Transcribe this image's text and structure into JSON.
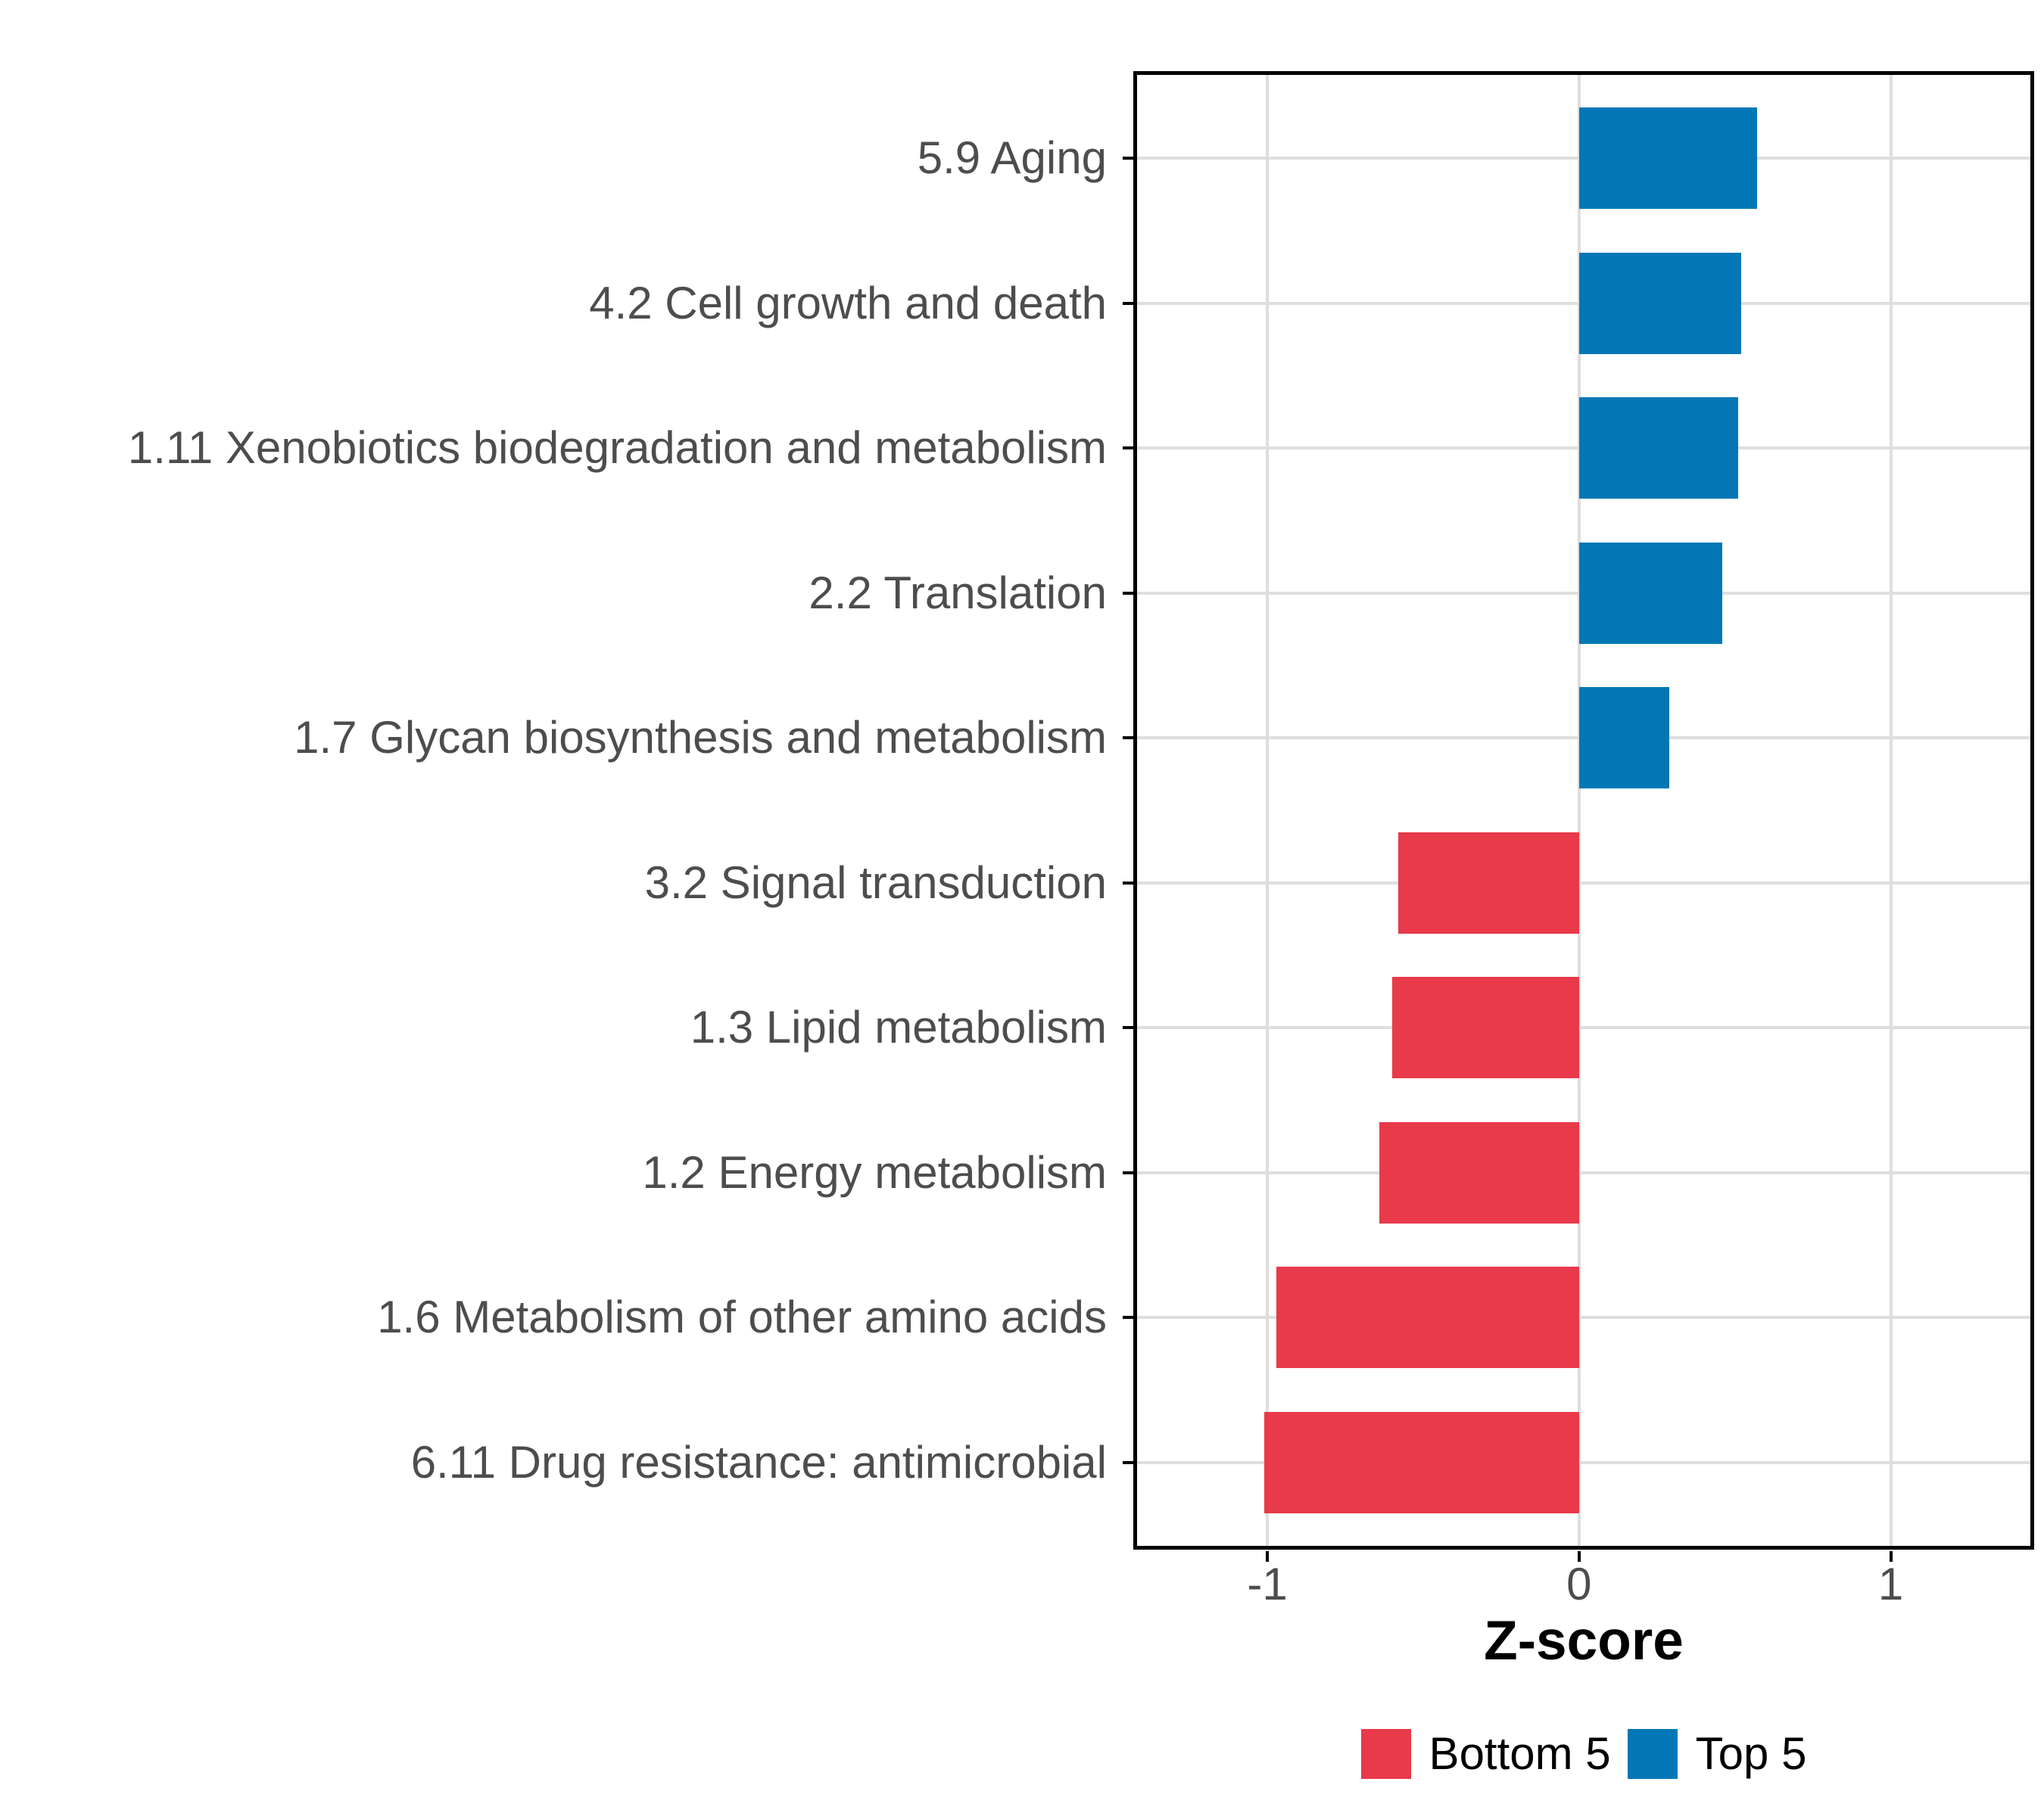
{
  "chart_data": {
    "type": "bar",
    "orientation": "horizontal",
    "title": "",
    "xlabel": "Z-score",
    "ylabel": "",
    "categories": [
      "5.9 Aging",
      "4.2 Cell growth and death",
      "1.11 Xenobiotics biodegradation and metabolism",
      "2.2 Translation",
      "1.7 Glycan biosynthesis and metabolism",
      "3.2 Signal transduction",
      "1.3 Lipid metabolism",
      "1.2 Energy metabolism",
      "1.6 Metabolism of other amino acids",
      "6.11 Drug resistance: antimicrobial"
    ],
    "values": [
      0.57,
      0.52,
      0.51,
      0.46,
      0.29,
      -0.58,
      -0.6,
      -0.64,
      -0.97,
      -1.01
    ],
    "groups": [
      "Top 5",
      "Top 5",
      "Top 5",
      "Top 5",
      "Top 5",
      "Bottom 5",
      "Bottom 5",
      "Bottom 5",
      "Bottom 5",
      "Bottom 5"
    ],
    "xlim": [
      -1.43,
      1.46
    ],
    "x_breaks": [
      {
        "label": "-1",
        "value": -1
      },
      {
        "label": "0",
        "value": 0
      },
      {
        "label": "1",
        "value": 1
      }
    ],
    "grid": true,
    "legend": {
      "position": "bottom",
      "entries": [
        {
          "label": "Bottom 5",
          "color": "#E83A4B"
        },
        {
          "label": "Top 5",
          "color": "#0377B6"
        }
      ]
    },
    "colors": {
      "bottom5": "#E83A4B",
      "top5": "#0377B6",
      "grid": "#DEDEDE",
      "axis_text": "#4D4D4D",
      "panel_border": "#000000",
      "background": "#FFFFFF"
    }
  }
}
